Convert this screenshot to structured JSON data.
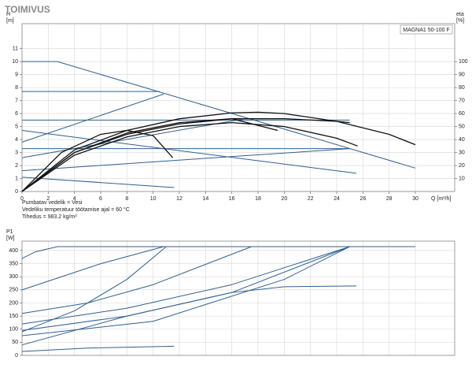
{
  "chart_data": [
    {
      "type": "line",
      "title": "TOIMIVUS",
      "box_label": "MAGNA1 50-100 F",
      "y_label": "H",
      "y_unit": "[m]",
      "y2_label": "eta",
      "y2_unit": "[%]",
      "x_label": "Q [m³/h]",
      "notes": [
        "Pumbatav vedelik = Vesi",
        "Vedeliku temperatuur töötamise ajal = 60 °C",
        "Tihedus = 983.2 kg/m³"
      ],
      "xlim": [
        0,
        30
      ],
      "xticks": [
        0,
        2,
        4,
        6,
        8,
        10,
        12,
        14,
        16,
        18,
        20,
        22,
        24,
        26,
        28,
        30
      ],
      "ylim": [
        0,
        12.8
      ],
      "yticks": [
        0,
        1,
        2,
        3,
        4,
        5,
        6,
        7,
        8,
        9,
        10,
        11
      ],
      "y2lim": [
        0,
        128
      ],
      "y2ticks": [
        10,
        20,
        30,
        40,
        50,
        60,
        70,
        80,
        90,
        100
      ],
      "grid": true,
      "series": [
        {
          "color": "#2f5f8f",
          "x": [
            0,
            2.7,
            30
          ],
          "values": [
            10,
            10,
            1.8
          ]
        },
        {
          "color": "#2f5f8f",
          "x": [
            0,
            10.5
          ],
          "values": [
            7.7,
            7.7
          ]
        },
        {
          "color": "#2f5f8f",
          "x": [
            0,
            25
          ],
          "values": [
            5.5,
            5.5
          ]
        },
        {
          "color": "#2f5f8f",
          "x": [
            0,
            25
          ],
          "values": [
            3.3,
            3.3
          ]
        },
        {
          "color": "#2f5f8f",
          "x": [
            0,
            10.8
          ],
          "values": [
            3.8,
            7.5
          ]
        },
        {
          "color": "#2f5f8f",
          "x": [
            0,
            17
          ],
          "values": [
            2.6,
            5.6
          ]
        },
        {
          "color": "#2f5f8f",
          "x": [
            0,
            25
          ],
          "values": [
            1.6,
            3.3
          ]
        },
        {
          "color": "#2f5f8f",
          "x": [
            0,
            25.5
          ],
          "values": [
            4.7,
            1.4
          ]
        },
        {
          "color": "#2f5f8f",
          "x": [
            0,
            11.6
          ],
          "values": [
            1.1,
            0.3
          ]
        },
        {
          "color": "#111111",
          "axis": "y2",
          "x": [
            0,
            4,
            8,
            12,
            16,
            18,
            20,
            24,
            28,
            30
          ],
          "values": [
            0,
            32,
            47,
            56,
            60.5,
            61,
            60,
            54,
            44,
            36
          ]
        },
        {
          "color": "#111111",
          "axis": "y2",
          "x": [
            0,
            4,
            8,
            12,
            16,
            20,
            24,
            25
          ],
          "values": [
            0,
            30,
            44,
            52,
            56,
            56,
            54,
            53
          ]
        },
        {
          "color": "#111111",
          "axis": "y2",
          "x": [
            0,
            4,
            8,
            12,
            16,
            20,
            24,
            25.6
          ],
          "values": [
            0,
            28,
            42,
            50,
            53,
            50,
            41,
            35
          ]
        },
        {
          "color": "#111111",
          "axis": "y2",
          "x": [
            0,
            4,
            8,
            12,
            16,
            19.5
          ],
          "values": [
            0,
            30,
            45,
            53,
            56,
            47
          ]
        },
        {
          "color": "#111111",
          "axis": "y2",
          "x": [
            0,
            3,
            6,
            8,
            10,
            11.5
          ],
          "values": [
            0,
            30,
            44,
            47,
            43,
            26
          ]
        }
      ]
    },
    {
      "type": "line",
      "y_label": "P1",
      "y_unit": "[W]",
      "xlim": [
        0,
        30
      ],
      "ylim": [
        0,
        430
      ],
      "yticks": [
        0,
        50,
        100,
        150,
        200,
        250,
        300,
        350,
        400
      ],
      "grid": true,
      "series": [
        {
          "color": "#2f5f8f",
          "x": [
            0,
            1,
            2.7,
            30
          ],
          "values": [
            370,
            395,
            415,
            415
          ]
        },
        {
          "color": "#2f5f8f",
          "x": [
            0,
            3,
            6,
            10.8
          ],
          "values": [
            250,
            300,
            350,
            415
          ]
        },
        {
          "color": "#2f5f8f",
          "x": [
            0,
            5,
            10,
            17.5
          ],
          "values": [
            160,
            200,
            270,
            415
          ]
        },
        {
          "color": "#2f5f8f",
          "x": [
            0,
            4,
            8,
            11
          ],
          "values": [
            90,
            170,
            290,
            415
          ]
        },
        {
          "color": "#2f5f8f",
          "x": [
            0,
            8,
            16,
            25
          ],
          "values": [
            120,
            180,
            270,
            415
          ]
        },
        {
          "color": "#2f5f8f",
          "x": [
            0,
            8,
            16,
            25
          ],
          "values": [
            95,
            150,
            240,
            415
          ]
        },
        {
          "color": "#2f5f8f",
          "x": [
            0,
            10,
            20,
            25
          ],
          "values": [
            75,
            130,
            290,
            415
          ]
        },
        {
          "color": "#2f5f8f",
          "x": [
            0,
            8,
            16,
            20,
            25.5
          ],
          "values": [
            40,
            150,
            240,
            262,
            265
          ]
        },
        {
          "color": "#2f5f8f",
          "x": [
            0,
            5,
            11.6
          ],
          "values": [
            15,
            28,
            35
          ]
        }
      ]
    }
  ]
}
